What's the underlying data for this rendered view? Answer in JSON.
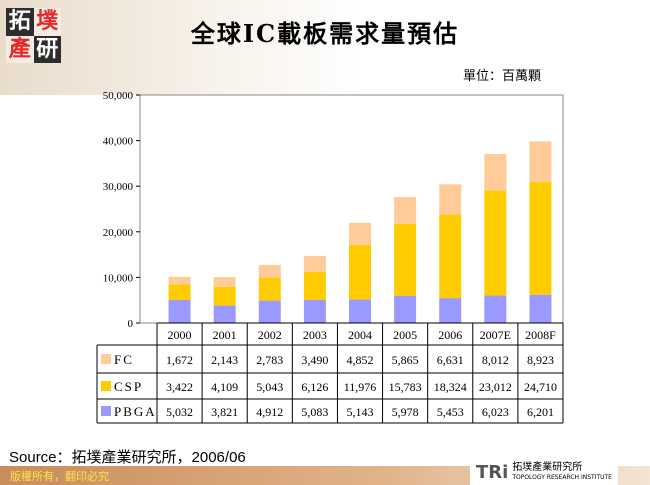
{
  "header": {
    "title": "全球IC載板需求量預估",
    "unit": "單位：百萬顆",
    "logo_text": "拓墣產研"
  },
  "chart_data": {
    "type": "bar",
    "stacked": true,
    "categories": [
      "2000",
      "2001",
      "2002",
      "2003",
      "2004",
      "2005",
      "2006",
      "2007E",
      "2008F"
    ],
    "series": [
      {
        "name": "PBGA",
        "color": "#9999FF",
        "values": [
          5032,
          3821,
          4912,
          5083,
          5143,
          5978,
          5453,
          6023,
          6201
        ]
      },
      {
        "name": "CSP",
        "color": "#FFCC00",
        "values": [
          3422,
          4109,
          5043,
          6126,
          11976,
          15783,
          18324,
          23012,
          24710
        ]
      },
      {
        "name": "FC",
        "color": "#FFCC99",
        "values": [
          1672,
          2143,
          2783,
          3490,
          4852,
          5865,
          6631,
          8012,
          8923
        ]
      }
    ],
    "table_order": [
      "FC",
      "CSP",
      "PBGA"
    ],
    "ylim": [
      0,
      50000
    ],
    "yticks": [
      "0",
      "10,000",
      "20,000",
      "30,000",
      "40,000",
      "50,000"
    ],
    "grid": false,
    "legend": "data-table"
  },
  "footer": {
    "source": "Source：拓墣產業研究所，2006/06",
    "copyright": "版權所有，翻印必究",
    "brand": "TRi",
    "brand_cn": "拓墣產業研究所",
    "brand_en": "TOPOLOGY RESEARCH INSTITUTE"
  }
}
